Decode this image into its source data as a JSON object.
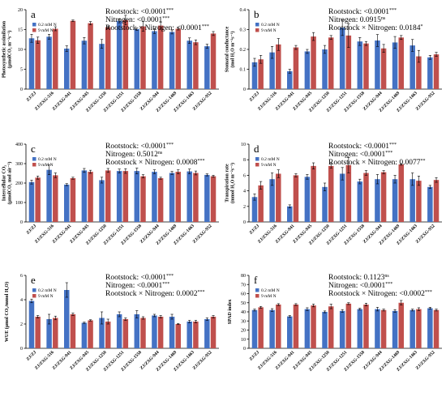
{
  "colors": {
    "low": "#4472C4",
    "high": "#C0504D"
  },
  "chart_data": [
    {
      "type": "bar",
      "letter": "a",
      "ylabel_lines": [
        "Photosynthetic assimilation",
        "(μmolCO₂ m⁻²s⁻¹)"
      ],
      "ylim": [
        0,
        20
      ],
      "yticks": [
        "0",
        "5",
        "10",
        "15",
        "20"
      ],
      "categories": [
        "ZJ/ZJ",
        "ZJ/ZXG-516",
        "ZJ/ZXG-941",
        "ZJ/ZXG-945",
        "ZJ/ZXG-1250",
        "ZJ/ZXG-1251",
        "ZJ/ZXG-1558",
        "ZJ/ZXG-944",
        "ZJ/ZXG-1469",
        "ZJ/ZXG-1463",
        "ZJ/ZXG-952"
      ],
      "series": [
        {
          "name": "0.2 mM N",
          "values": [
            12.8,
            13.2,
            10.2,
            12.2,
            11.4,
            17.2,
            15.1,
            14.6,
            14.4,
            12.2,
            10.8
          ],
          "errors": [
            1.0,
            0.6,
            0.7,
            0.8,
            1.1,
            0.5,
            0.3,
            0.6,
            0.5,
            0.7,
            0.5
          ]
        },
        {
          "name": "9 mM N",
          "values": [
            12.3,
            15.2,
            17.2,
            16.6,
            15.6,
            17.4,
            15.8,
            16.0,
            15.2,
            11.8,
            14.0
          ],
          "errors": [
            0.8,
            0.5,
            0.2,
            0.4,
            0.3,
            1.2,
            1.2,
            0.9,
            0.3,
            0.6,
            0.5
          ]
        }
      ],
      "stats": [
        {
          "label": "Rootstock: ",
          "value": "<0.0001",
          "sig": "***"
        },
        {
          "label": "Nitrogen: ",
          "value": "<0.0001",
          "sig": "***"
        },
        {
          "label": "Rootstock × Nitrogen: ",
          "value": "<0.0001",
          "sig": "***"
        }
      ]
    },
    {
      "type": "bar",
      "letter": "b",
      "ylabel_lines": [
        "Stomatal conductance",
        "(mol H₂O m⁻²s⁻¹)"
      ],
      "ylim": [
        0,
        0.4
      ],
      "yticks": [
        "0",
        "0.1",
        "0.2",
        "0.3",
        "0.4"
      ],
      "categories": [
        "ZJ/ZJ",
        "ZJ/ZXG-516",
        "ZJ/ZXG-941",
        "ZJ/ZXG-945",
        "ZJ/ZXG-1250",
        "ZJ/ZXG-1251",
        "ZJ/ZXG-1558",
        "ZJ/ZXG-944",
        "ZJ/ZXG-1469",
        "ZJ/ZXG-1463",
        "ZJ/ZXG-952"
      ],
      "series": [
        {
          "name": "0.2 mM N",
          "values": [
            0.135,
            0.185,
            0.09,
            0.19,
            0.2,
            0.31,
            0.24,
            0.245,
            0.235,
            0.22,
            0.16
          ],
          "errors": [
            0.02,
            0.03,
            0.01,
            0.01,
            0.02,
            0.04,
            0.02,
            0.03,
            0.03,
            0.03,
            0.01
          ]
        },
        {
          "name": "9 mM N",
          "values": [
            0.15,
            0.225,
            0.21,
            0.265,
            0.26,
            0.27,
            0.23,
            0.205,
            0.26,
            0.165,
            0.175
          ],
          "errors": [
            0.02,
            0.03,
            0.01,
            0.02,
            0.01,
            0.06,
            0.01,
            0.02,
            0.01,
            0.03,
            0.01
          ]
        }
      ],
      "stats": [
        {
          "label": "Rootstock: ",
          "value": "<0.0001",
          "sig": "***"
        },
        {
          "label": "Nitrogen: ",
          "value": "0.0915",
          "sig": "ns"
        },
        {
          "label": "Rootstock × Nitrogen: ",
          "value": "0.0184",
          "sig": "*"
        }
      ]
    },
    {
      "type": "bar",
      "letter": "c",
      "ylabel_lines": [
        "Intercellular CO₂",
        "(μmolCO₂ mol air⁻¹)"
      ],
      "ylim": [
        0,
        400
      ],
      "yticks": [
        "0",
        "100",
        "200",
        "300",
        "400"
      ],
      "categories": [
        "ZJ/ZJ",
        "ZJ/ZXG-516",
        "ZJ/ZXG-941",
        "ZJ/ZXG-945",
        "ZJ/ZXG-1250",
        "ZJ/ZXG-1251",
        "ZJ/ZXG-1558",
        "ZJ/ZXG-944",
        "ZJ/ZXG-1469",
        "ZJ/ZXG-1463",
        "ZJ/ZXG-952"
      ],
      "series": [
        {
          "name": "0.2 mM N",
          "values": [
            205,
            268,
            192,
            265,
            215,
            262,
            262,
            258,
            252,
            260,
            242
          ],
          "errors": [
            10,
            25,
            5,
            10,
            15,
            10,
            15,
            10,
            8,
            12,
            5
          ]
        },
        {
          "name": "9 mM N",
          "values": [
            228,
            240,
            225,
            258,
            265,
            262,
            235,
            225,
            258,
            252,
            235
          ],
          "errors": [
            8,
            12,
            5,
            8,
            10,
            12,
            8,
            5,
            10,
            10,
            5
          ]
        }
      ],
      "stats": [
        {
          "label": "Rootstock: ",
          "value": "<0.0001",
          "sig": "***"
        },
        {
          "label": "Nitrogen: ",
          "value": "0.5012",
          "sig": "ns"
        },
        {
          "label": "Rootstock × Nitrogen: ",
          "value": "0.0008",
          "sig": "***"
        }
      ]
    },
    {
      "type": "bar",
      "letter": "d",
      "ylabel_lines": [
        "Transpiration rate",
        "(mmol H₂O m⁻²s⁻¹)"
      ],
      "ylim": [
        0,
        10
      ],
      "yticks": [
        "0",
        "2",
        "4",
        "6",
        "8",
        "10"
      ],
      "categories": [
        "ZJ/ZJ",
        "ZJ/ZXG-516",
        "ZJ/ZXG-941",
        "ZJ/ZXG-945",
        "ZJ/ZXG-1250",
        "ZJ/ZXG-1251",
        "ZJ/ZXG-1558",
        "ZJ/ZXG-944",
        "ZJ/ZXG-1469",
        "ZJ/ZXG-1463",
        "ZJ/ZXG-952"
      ],
      "series": [
        {
          "name": "0.2 mM N",
          "values": [
            3.2,
            5.5,
            2.0,
            5.8,
            4.5,
            6.2,
            5.2,
            5.5,
            5.5,
            5.5,
            4.5
          ],
          "errors": [
            0.4,
            0.8,
            0.2,
            0.3,
            0.5,
            0.8,
            0.3,
            0.6,
            0.5,
            0.8,
            0.2
          ]
        },
        {
          "name": "9 mM N",
          "values": [
            4.7,
            6.2,
            6.0,
            7.2,
            7.2,
            7.3,
            6.3,
            6.4,
            7.4,
            5.3,
            5.4
          ],
          "errors": [
            0.5,
            0.5,
            0.2,
            0.4,
            0.3,
            1.0,
            0.3,
            0.2,
            0.1,
            0.6,
            0.3
          ]
        }
      ],
      "stats": [
        {
          "label": "Rootstock: ",
          "value": "<0.0001",
          "sig": "***"
        },
        {
          "label": "Nitrogen: ",
          "value": "<0.0001",
          "sig": "***"
        },
        {
          "label": "Rootstock × Nitrogen: ",
          "value": "0.0077",
          "sig": "**"
        }
      ]
    },
    {
      "type": "bar",
      "letter": "e",
      "ylabel_lines": [
        "WUE (μmol CO₂/mmol H₂O)"
      ],
      "ylim": [
        0,
        6
      ],
      "yticks": [
        "0",
        "2",
        "4",
        "6"
      ],
      "categories": [
        "ZJ/ZJ",
        "ZJ/ZXG-516",
        "ZJ/ZXG-941",
        "ZJ/ZXG-945",
        "ZJ/ZXG-1250",
        "ZJ/ZXG-1251",
        "ZJ/ZXG-1558",
        "ZJ/ZXG-944",
        "ZJ/ZXG-1469",
        "ZJ/ZXG-1463",
        "ZJ/ZXG-952"
      ],
      "series": [
        {
          "name": "0.2 mM N",
          "values": [
            3.9,
            2.4,
            4.8,
            2.1,
            2.5,
            2.8,
            2.8,
            2.7,
            2.6,
            2.2,
            2.4
          ],
          "errors": [
            0.15,
            0.4,
            0.6,
            0.05,
            0.5,
            0.2,
            0.3,
            0.1,
            0.2,
            0.1,
            0.1
          ]
        },
        {
          "name": "9 mM N",
          "values": [
            2.6,
            2.5,
            2.8,
            2.3,
            2.2,
            2.4,
            2.5,
            2.6,
            2.0,
            2.2,
            2.6
          ],
          "errors": [
            0.1,
            0.15,
            0.1,
            0.05,
            0.2,
            0.1,
            0.1,
            0.1,
            0.05,
            0.1,
            0.1
          ]
        }
      ],
      "stats": [
        {
          "label": "Rootstock: ",
          "value": "<0.0001",
          "sig": "***"
        },
        {
          "label": "Nitrogen: ",
          "value": "<0.0001",
          "sig": "***"
        },
        {
          "label": "Rootstock × Nitrogen: ",
          "value": "0.0002",
          "sig": "***"
        }
      ]
    },
    {
      "type": "bar",
      "letter": "f",
      "ylabel_lines": [
        "SPAD index"
      ],
      "ylim": [
        0,
        80
      ],
      "yticks": [
        "0",
        "10",
        "20",
        "30",
        "40",
        "50",
        "60",
        "70",
        "80"
      ],
      "categories": [
        "ZJ/ZJ",
        "ZJ/ZXG-516",
        "ZJ/ZXG-941",
        "ZJ/ZXG-945",
        "ZJ/ZXG-1250",
        "ZJ/ZXG-1251",
        "ZJ/ZXG-1558",
        "ZJ/ZXG-944",
        "ZJ/ZXG-1469",
        "ZJ/ZXG-1463",
        "ZJ/ZXG-952"
      ],
      "series": [
        {
          "name": "0.2 mM N",
          "values": [
            42,
            42,
            35,
            43,
            40,
            41,
            43,
            43,
            41,
            42,
            44
          ],
          "errors": [
            1.0,
            1.5,
            1.0,
            1.5,
            1.0,
            1.5,
            1.0,
            2.0,
            1.5,
            1.0,
            1.0
          ]
        },
        {
          "name": "9 mM N",
          "values": [
            45,
            48,
            48,
            47,
            46,
            49,
            48,
            42,
            50,
            43,
            42
          ],
          "errors": [
            1.0,
            1.0,
            1.0,
            1.5,
            2.5,
            1.0,
            1.5,
            1.0,
            2.5,
            1.5,
            1.0
          ]
        }
      ],
      "stats": [
        {
          "label": "Rootstock: ",
          "value": "0.1123",
          "sig": "ns"
        },
        {
          "label": "Nitrogen: ",
          "value": "<0.0001",
          "sig": "***"
        },
        {
          "label": "Rootstock × Nitrogen: ",
          "value": "<0.0002",
          "sig": "***"
        }
      ]
    }
  ]
}
